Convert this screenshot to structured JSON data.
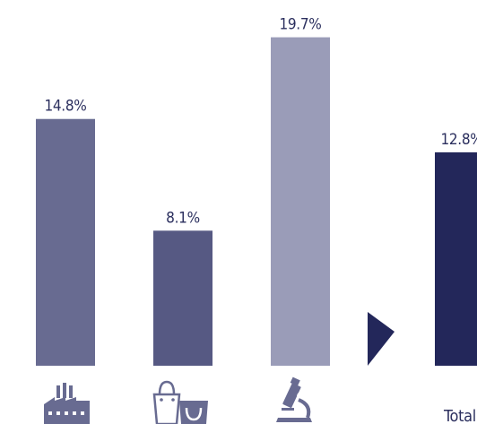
{
  "chart_data": {
    "type": "bar",
    "categories": [
      "factory-icon",
      "shopping-bags-icon",
      "microscope-icon",
      "Total"
    ],
    "values": [
      14.8,
      8.1,
      19.7,
      12.8
    ],
    "labels": [
      "14.8%",
      "8.1%",
      "19.7%",
      "12.8%"
    ],
    "colors": [
      "#686b91",
      "#565983",
      "#9a9cb8",
      "#23275a"
    ],
    "icon_color": "#686b91",
    "arrow_color": "#23275a",
    "ylim": [
      0,
      20
    ]
  }
}
